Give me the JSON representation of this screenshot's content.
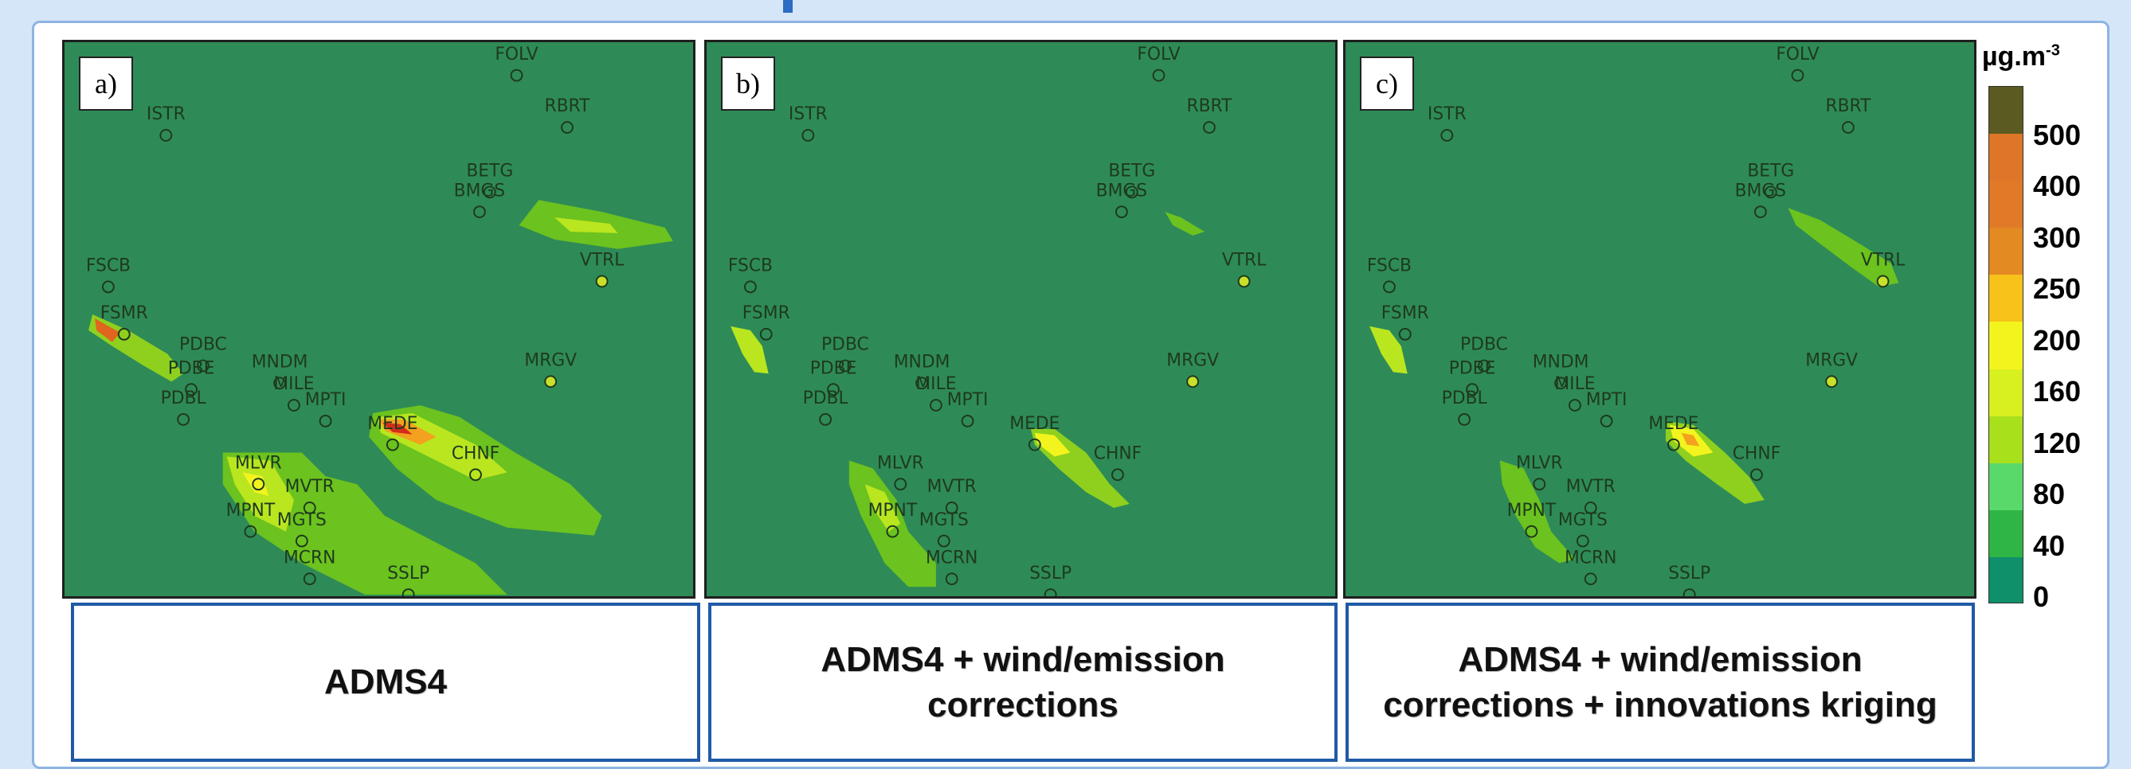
{
  "panels": [
    {
      "label": "a)",
      "caption": "ADMS4",
      "scenario": "adms4"
    },
    {
      "label": "b)",
      "caption": "ADMS4 + wind/emission corrections",
      "scenario": "corrected"
    },
    {
      "label": "c)",
      "caption": "ADMS4 + wind/emission corrections + innovations kriging",
      "scenario": "kriging"
    }
  ],
  "stations": [
    {
      "name": "FOLV"
    },
    {
      "name": "RBRT"
    },
    {
      "name": "ISTR"
    },
    {
      "name": "BETG"
    },
    {
      "name": "BMGS"
    },
    {
      "name": "VTRL"
    },
    {
      "name": "FSCB"
    },
    {
      "name": "FSMR"
    },
    {
      "name": "PDBC"
    },
    {
      "name": "PDBE"
    },
    {
      "name": "PDBL"
    },
    {
      "name": "MNDM"
    },
    {
      "name": "MILE"
    },
    {
      "name": "MPTI"
    },
    {
      "name": "MEDE"
    },
    {
      "name": "MRGV"
    },
    {
      "name": "CHNF"
    },
    {
      "name": "MLVR"
    },
    {
      "name": "MVTR"
    },
    {
      "name": "MPNT"
    },
    {
      "name": "MGTS"
    },
    {
      "name": "MCRN"
    },
    {
      "name": "SSLP"
    }
  ],
  "legend": {
    "unit": "µg.m",
    "unit_exp": "-3",
    "levels": [
      "0",
      "40",
      "80",
      "120",
      "160",
      "200",
      "250",
      "300",
      "400",
      "500"
    ],
    "colors": [
      "#0f8f6a",
      "#2fb545",
      "#59d96a",
      "#a9e01c",
      "#d9f020",
      "#f3f41e",
      "#f7c219",
      "#e38a22",
      "#e07a28",
      "#dd7628",
      "#5b5a20"
    ]
  }
}
